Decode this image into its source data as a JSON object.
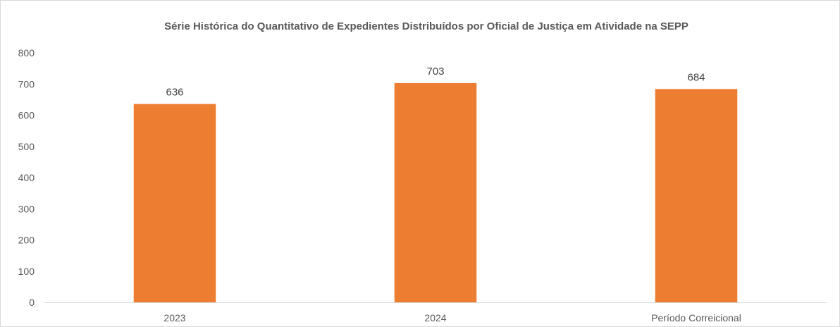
{
  "chart_data": {
    "type": "bar",
    "title": "Série Histórica do Quantitativo de Expedientes Distribuídos por Oficial de Justiça em Atividade na SEPP",
    "categories": [
      "2023",
      "2024",
      "Período Correicional"
    ],
    "values": [
      636,
      703,
      684
    ],
    "data_labels": [
      "636",
      "703",
      "684"
    ],
    "xlabel": "",
    "ylabel": "",
    "ylim": [
      0,
      800
    ],
    "yticks": [
      0,
      100,
      200,
      300,
      400,
      500,
      600,
      700,
      800
    ],
    "grid": false,
    "legend": "none",
    "bar_color": "#ed7d31"
  }
}
